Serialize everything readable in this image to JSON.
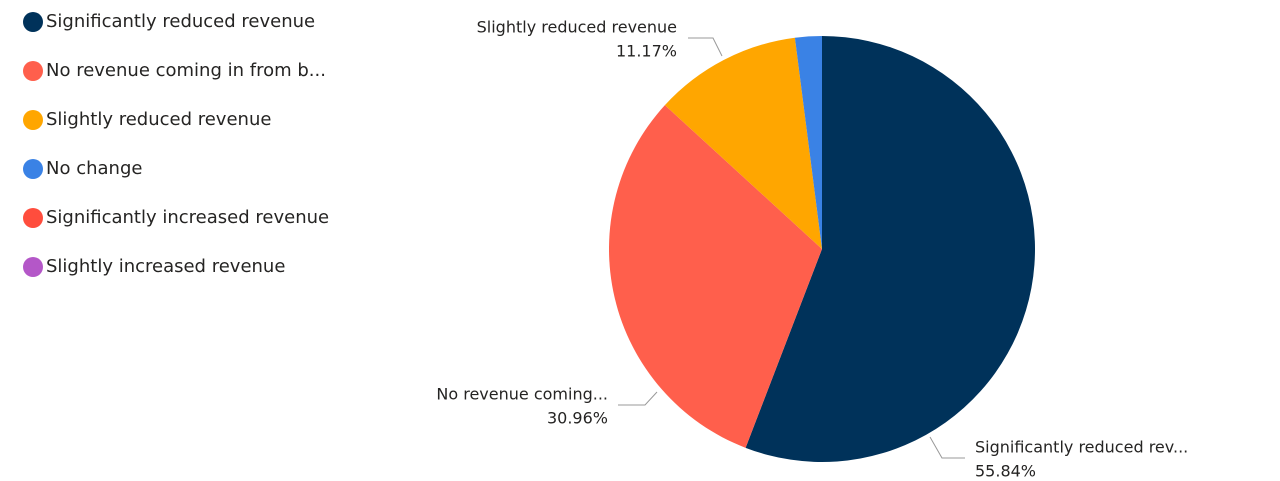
{
  "chart_data": {
    "type": "pie",
    "categories": [
      "Significantly reduced revenue",
      "No revenue coming in from b...",
      "Slightly reduced revenue",
      "No change",
      "Significantly increased revenue",
      "Slightly increased revenue"
    ],
    "values": [
      55.84,
      30.96,
      11.17,
      2.03,
      0,
      0
    ],
    "value_labels": [
      "55.84%",
      "30.96%",
      "11.17%",
      null,
      null,
      null
    ],
    "slice_labels": [
      "Significantly reduced rev...",
      "No revenue coming...",
      "Slightly reduced revenue",
      null,
      null,
      null
    ],
    "colors": [
      "#00325a",
      "#ff5f4c",
      "#ffa600",
      "#3a82e5",
      "#ff4d3d",
      "#b457c8"
    ],
    "legend": "left"
  }
}
